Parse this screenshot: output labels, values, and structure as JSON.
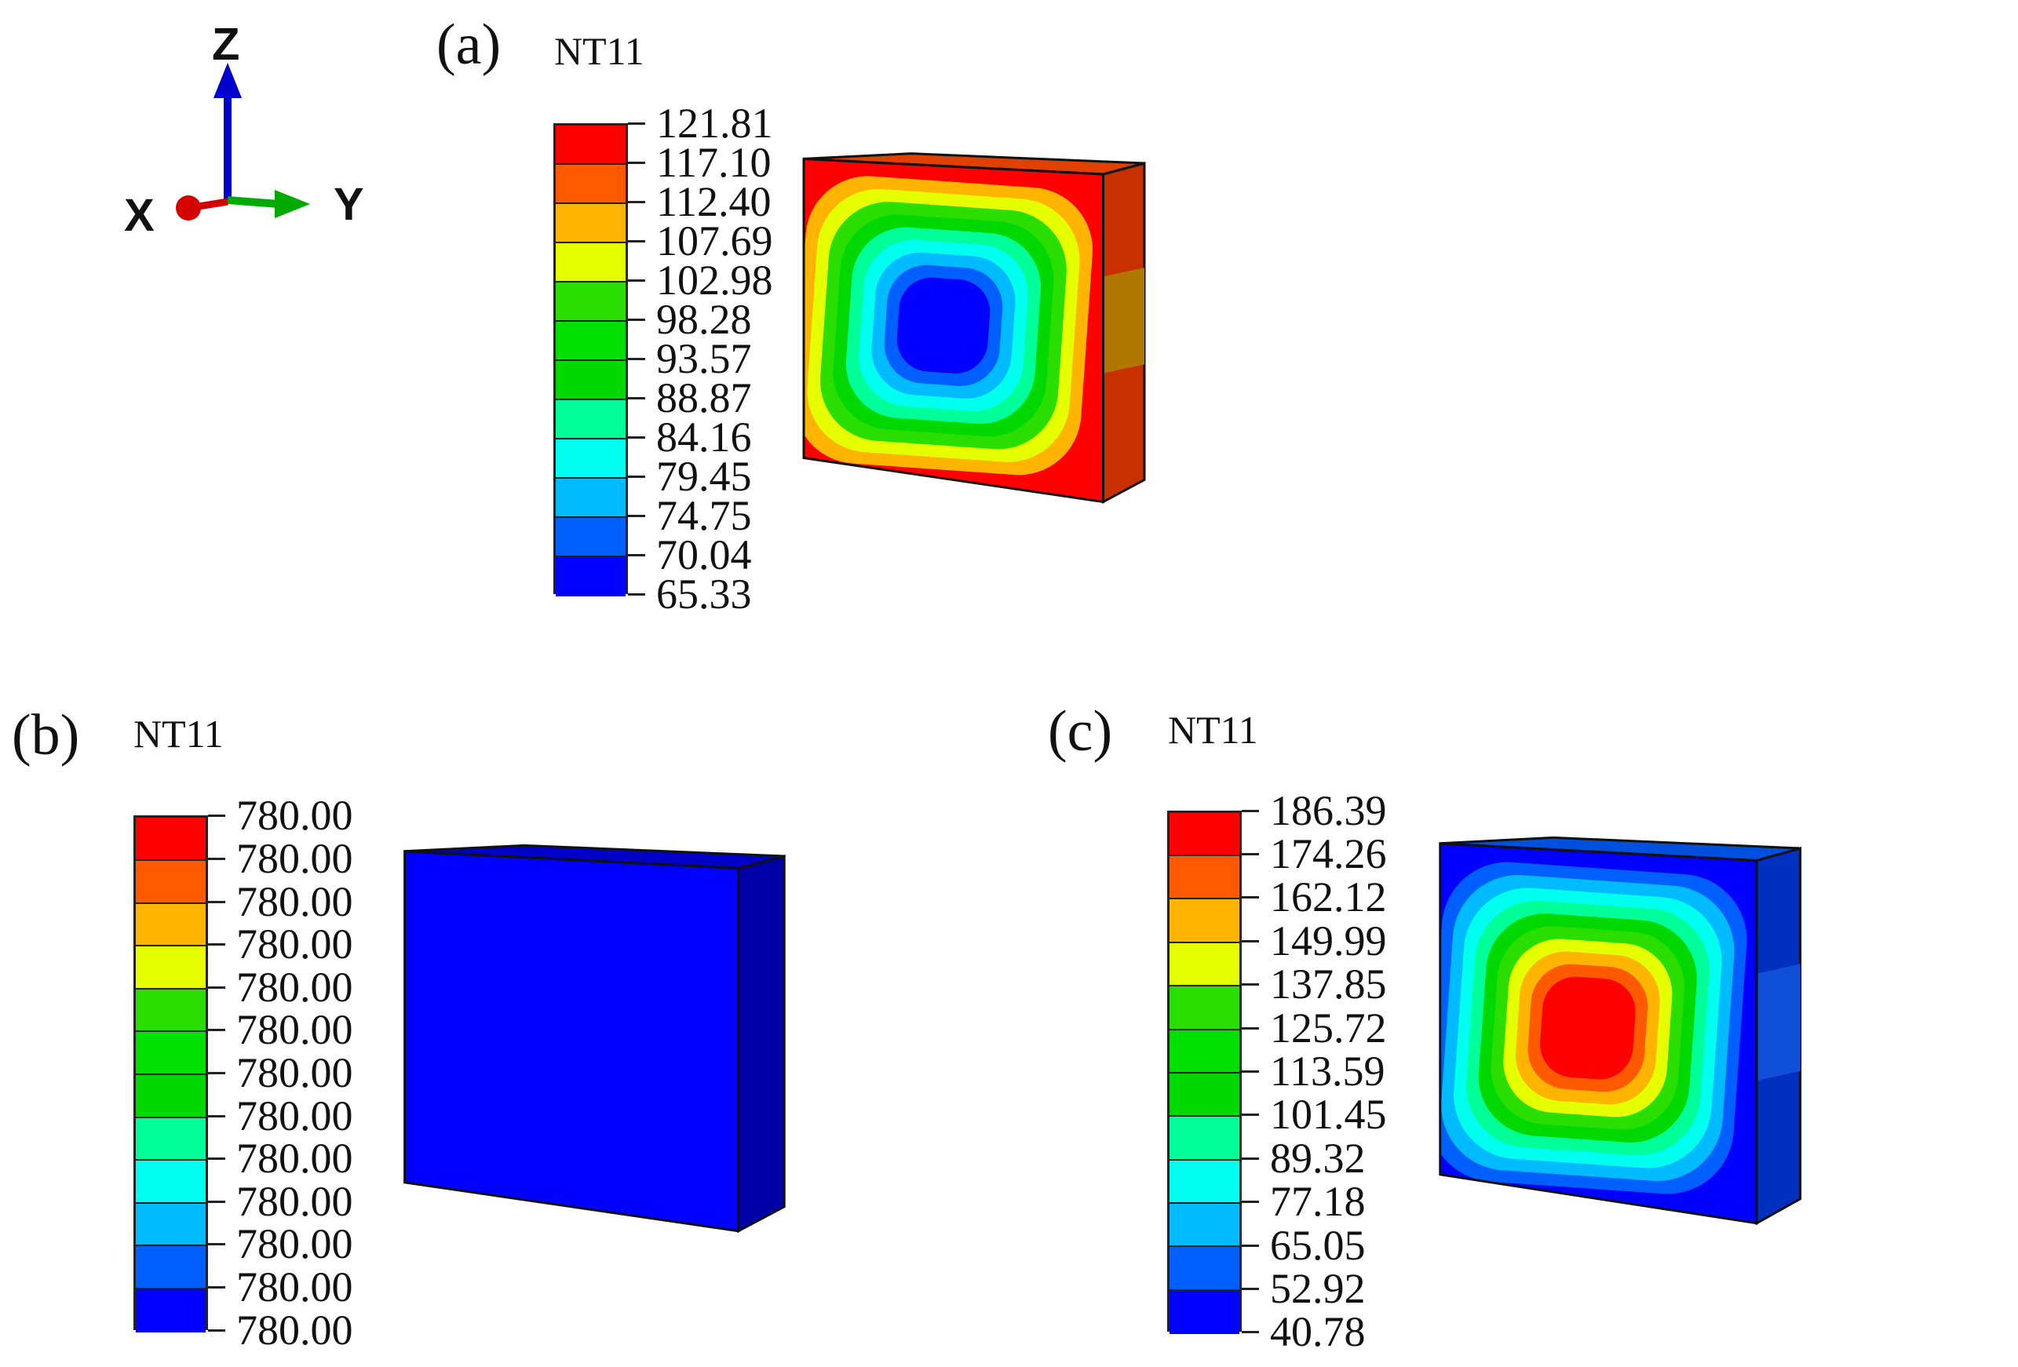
{
  "axes": {
    "x_label": "X",
    "y_label": "Y",
    "z_label": "Z"
  },
  "colors": {
    "band_colors_top_to_bottom": [
      "#ff0000",
      "#ff5a00",
      "#ffb400",
      "#e6ff00",
      "#2adf00",
      "#00e000",
      "#00d800",
      "#00ff98",
      "#00ffee",
      "#00bbff",
      "#0060ff",
      "#0000ff"
    ],
    "axis_x": "#d40000",
    "axis_y": "#00aa00",
    "axis_z": "#0000cc"
  },
  "panels": [
    {
      "letter": "(a)",
      "variable": "NT11",
      "legend_values": [
        "121.81",
        "117.10",
        "112.40",
        "107.69",
        "102.98",
        "98.28",
        "93.57",
        "88.87",
        "84.16",
        "79.45",
        "74.75",
        "70.04",
        "65.33"
      ],
      "field": "hot-surface-cool-core"
    },
    {
      "letter": "(b)",
      "variable": "NT11",
      "legend_values": [
        "780.00",
        "780.00",
        "780.00",
        "780.00",
        "780.00",
        "780.00",
        "780.00",
        "780.00",
        "780.00",
        "780.00",
        "780.00",
        "780.00",
        "780.00"
      ],
      "field": "uniform"
    },
    {
      "letter": "(c)",
      "variable": "NT11",
      "legend_values": [
        "186.39",
        "174.26",
        "162.12",
        "149.99",
        "137.85",
        "125.72",
        "113.59",
        "101.45",
        "89.32",
        "77.18",
        "65.05",
        "52.92",
        "40.78"
      ],
      "field": "hot-core-cool-surface"
    }
  ]
}
